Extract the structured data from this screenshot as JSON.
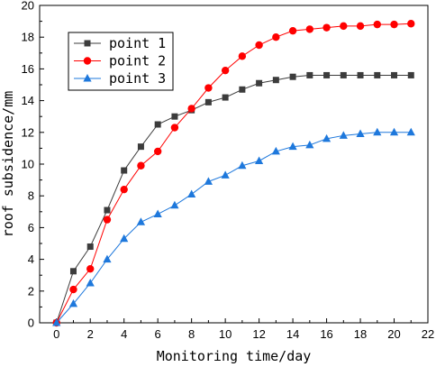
{
  "chart_data": {
    "type": "line",
    "xlabel": "Monitoring time/day",
    "ylabel": "roof subsidence/mm",
    "xlim": [
      -1,
      22
    ],
    "ylim": [
      0,
      20
    ],
    "xticks": [
      0,
      2,
      4,
      6,
      8,
      10,
      12,
      14,
      16,
      18,
      20,
      22
    ],
    "yticks": [
      0,
      2,
      4,
      6,
      8,
      10,
      12,
      14,
      16,
      18,
      20
    ],
    "legend_position": "top-left",
    "grid": false,
    "x": [
      0,
      1,
      2,
      3,
      4,
      5,
      6,
      7,
      8,
      9,
      10,
      11,
      12,
      13,
      14,
      15,
      16,
      17,
      18,
      19,
      20,
      21
    ],
    "series": [
      {
        "name": "point 1",
        "marker": "square",
        "color": "#3c3c3c",
        "values": [
          0,
          3.25,
          4.8,
          7.1,
          9.6,
          11.1,
          12.5,
          13.0,
          13.4,
          13.9,
          14.2,
          14.7,
          15.1,
          15.3,
          15.5,
          15.6,
          15.6,
          15.6,
          15.6,
          15.6,
          15.6,
          15.6
        ]
      },
      {
        "name": "point 2",
        "marker": "circle",
        "color": "#ff0000",
        "values": [
          0,
          2.1,
          3.4,
          6.5,
          8.4,
          9.9,
          10.8,
          12.3,
          13.5,
          14.8,
          15.9,
          16.8,
          17.5,
          18.0,
          18.4,
          18.5,
          18.6,
          18.7,
          18.7,
          18.8,
          18.8,
          18.85
        ]
      },
      {
        "name": "point 3",
        "marker": "triangle",
        "color": "#1e78dc",
        "values": [
          0,
          1.2,
          2.5,
          4.0,
          5.3,
          6.35,
          6.85,
          7.4,
          8.1,
          8.9,
          9.3,
          9.9,
          10.2,
          10.8,
          11.1,
          11.2,
          11.6,
          11.8,
          11.9,
          12.0,
          12.0,
          12.0
        ]
      }
    ]
  }
}
